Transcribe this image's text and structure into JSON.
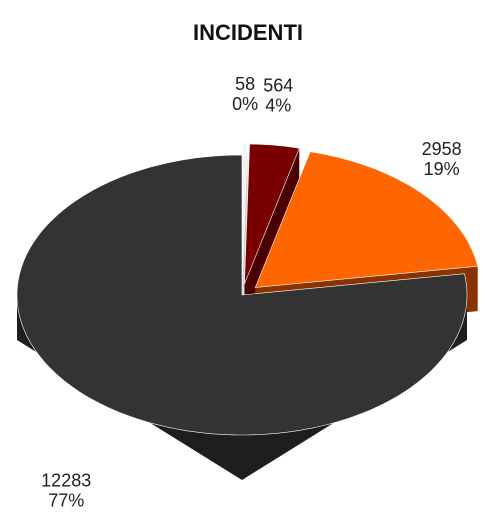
{
  "chart_data": {
    "type": "pie",
    "title": "INCIDENTI",
    "values": [
      58,
      564,
      2958,
      12283
    ],
    "percent_labels": [
      "0%",
      "4%",
      "19%",
      "77%"
    ],
    "colors": [
      "#f2f2f2",
      "#7a0000",
      "#ff6600",
      "#333333"
    ],
    "side_colors": [
      "#c8c8c8",
      "#4a0000",
      "#8a3300",
      "#1e1e1e"
    ],
    "explode": [
      true,
      true,
      true,
      false
    ]
  }
}
